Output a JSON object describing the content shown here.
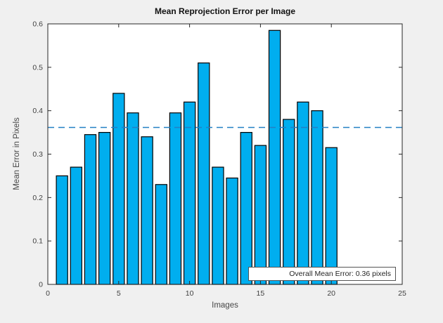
{
  "figure": {
    "background": "#f0f0f0",
    "plot_background": "#ffffff",
    "axis_color": "#262626",
    "tick_label_color": "#404040"
  },
  "chart_data": {
    "type": "bar",
    "title": "Mean Reprojection Error per Image",
    "xlabel": "Images",
    "ylabel": "Mean Error in Pixels",
    "x": [
      1,
      2,
      3,
      4,
      5,
      6,
      7,
      8,
      9,
      10,
      11,
      12,
      13,
      14,
      15,
      16,
      17,
      18,
      19,
      20
    ],
    "values": [
      0.25,
      0.27,
      0.345,
      0.35,
      0.44,
      0.395,
      0.34,
      0.23,
      0.395,
      0.42,
      0.51,
      0.27,
      0.245,
      0.35,
      0.32,
      0.585,
      0.38,
      0.42,
      0.4,
      0.315
    ],
    "xlim": [
      0,
      25
    ],
    "ylim": [
      0,
      0.6
    ],
    "xticks": [
      0,
      5,
      10,
      15,
      20,
      25
    ],
    "yticks": [
      0,
      0.1,
      0.2,
      0.3,
      0.4,
      0.5,
      0.6
    ],
    "grid": false,
    "bar_color": "#00aeef",
    "bar_edge_color": "#000000",
    "bar_rel_width": 0.8,
    "mean_line": {
      "value": 0.3615,
      "color": "#2380c4",
      "style": "dashed"
    },
    "legend": {
      "label": "Overall Mean Error: 0.36 pixels",
      "position": "lower-right"
    },
    "overall_mean_error_pixels": 0.36
  }
}
